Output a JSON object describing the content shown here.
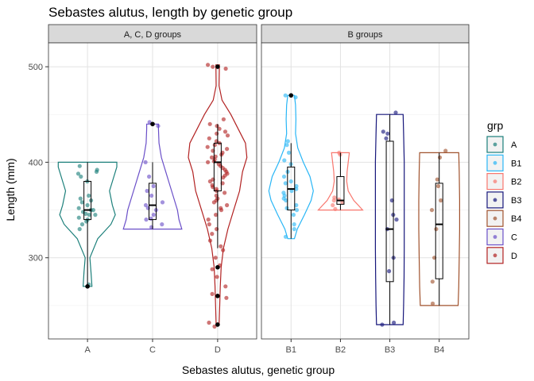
{
  "chart_data": {
    "type": "violin",
    "title": "Sebastes alutus, length by genetic group",
    "xlabel": "Sebastes alutus, genetic group",
    "ylabel": "Length (mm)",
    "ylim": [
      215,
      525
    ],
    "yticks": [
      300,
      400,
      500
    ],
    "grid": true,
    "legend_title": "grp",
    "legend_position": "right",
    "panels": [
      {
        "label": "A, C, D groups",
        "groups": [
          "A",
          "C",
          "D"
        ]
      },
      {
        "label": "B groups",
        "groups": [
          "B1",
          "B2",
          "B3",
          "B4"
        ]
      }
    ],
    "legend": [
      {
        "name": "A",
        "color": "#1B7F7A"
      },
      {
        "name": "B1",
        "color": "#29B6F6"
      },
      {
        "name": "B2",
        "color": "#F8766D"
      },
      {
        "name": "B3",
        "color": "#15157A"
      },
      {
        "name": "B4",
        "color": "#A0522D"
      },
      {
        "name": "C",
        "color": "#6A4FC8"
      },
      {
        "name": "D",
        "color": "#B22222"
      }
    ],
    "series": [
      {
        "name": "A",
        "color": "#1B7F7A",
        "box": {
          "min": 270,
          "q1": 340,
          "median": 350,
          "q3": 380,
          "max": 400
        },
        "outliers": [
          270
        ],
        "violin": [
          [
            270,
            0.15
          ],
          [
            285,
            0.12
          ],
          [
            300,
            0.08
          ],
          [
            320,
            0.35
          ],
          [
            335,
            0.8
          ],
          [
            345,
            0.95
          ],
          [
            355,
            0.85
          ],
          [
            370,
            0.75
          ],
          [
            385,
            0.9
          ],
          [
            395,
            1.0
          ],
          [
            400,
            1.0
          ]
        ],
        "points": [
          270,
          272,
          330,
          335,
          338,
          340,
          342,
          345,
          345,
          346,
          348,
          350,
          350,
          352,
          355,
          358,
          360,
          362,
          365,
          380,
          385,
          388,
          390,
          392,
          396
        ]
      },
      {
        "name": "C",
        "color": "#6A4FC8",
        "box": {
          "min": 330,
          "q1": 340,
          "median": 355,
          "q3": 378,
          "max": 400
        },
        "outliers": [
          440
        ],
        "violin": [
          [
            330,
            1.0
          ],
          [
            340,
            0.9
          ],
          [
            350,
            0.85
          ],
          [
            360,
            0.75
          ],
          [
            375,
            0.6
          ],
          [
            390,
            0.45
          ],
          [
            405,
            0.3
          ],
          [
            420,
            0.22
          ],
          [
            435,
            0.2
          ],
          [
            440,
            0.2
          ]
        ],
        "points": [
          332,
          335,
          340,
          341,
          345,
          350,
          352,
          355,
          358,
          365,
          370,
          375,
          385,
          400,
          438,
          442
        ]
      },
      {
        "name": "D",
        "color": "#B22222",
        "box": {
          "min": 310,
          "q1": 370,
          "median": 400,
          "q3": 420,
          "max": 440
        },
        "outliers": [
          230,
          260,
          290,
          500
        ],
        "violin": [
          [
            230,
            0.05
          ],
          [
            250,
            0.07
          ],
          [
            270,
            0.09
          ],
          [
            290,
            0.12
          ],
          [
            310,
            0.2
          ],
          [
            330,
            0.35
          ],
          [
            350,
            0.55
          ],
          [
            370,
            0.75
          ],
          [
            390,
            0.85
          ],
          [
            405,
            1.0
          ],
          [
            420,
            0.95
          ],
          [
            435,
            0.7
          ],
          [
            450,
            0.45
          ],
          [
            465,
            0.15
          ],
          [
            480,
            0.05
          ],
          [
            502,
            0.06
          ]
        ],
        "points": [
          228,
          232,
          258,
          262,
          270,
          280,
          288,
          292,
          300,
          308,
          312,
          318,
          325,
          330,
          335,
          340,
          345,
          350,
          352,
          355,
          358,
          360,
          362,
          365,
          368,
          370,
          372,
          374,
          376,
          378,
          380,
          382,
          384,
          386,
          388,
          390,
          392,
          394,
          396,
          398,
          400,
          401,
          403,
          405,
          406,
          408,
          410,
          412,
          414,
          416,
          418,
          420,
          422,
          425,
          428,
          430,
          432,
          435,
          438,
          440,
          445,
          498,
          500,
          502
        ]
      },
      {
        "name": "B1",
        "color": "#29B6F6",
        "box": {
          "min": 320,
          "q1": 350,
          "median": 372,
          "q3": 395,
          "max": 420
        },
        "outliers": [
          470
        ],
        "violin": [
          [
            320,
            0.15
          ],
          [
            330,
            0.28
          ],
          [
            345,
            0.6
          ],
          [
            360,
            0.9
          ],
          [
            370,
            1.0
          ],
          [
            385,
            0.85
          ],
          [
            400,
            0.55
          ],
          [
            415,
            0.3
          ],
          [
            430,
            0.2
          ],
          [
            445,
            0.22
          ],
          [
            460,
            0.2
          ],
          [
            470,
            0.15
          ]
        ],
        "points": [
          322,
          330,
          335,
          345,
          350,
          352,
          355,
          360,
          362,
          365,
          368,
          370,
          372,
          375,
          378,
          380,
          385,
          390,
          398,
          402,
          410,
          418,
          422,
          468,
          470
        ]
      },
      {
        "name": "B2",
        "color": "#F8766D",
        "box": {
          "min": 350,
          "q1": 356,
          "median": 360,
          "q3": 385,
          "max": 410
        },
        "outliers": [],
        "violin": [
          [
            350,
            1.0
          ],
          [
            355,
            0.8
          ],
          [
            360,
            0.6
          ],
          [
            370,
            0.35
          ],
          [
            380,
            0.28
          ],
          [
            390,
            0.3
          ],
          [
            400,
            0.35
          ],
          [
            410,
            0.4
          ]
        ],
        "points": [
          351,
          355,
          358,
          360,
          361,
          363,
          408,
          410
        ]
      },
      {
        "name": "B3",
        "color": "#15157A",
        "box": {
          "min": 230,
          "q1": 275,
          "median": 330,
          "q3": 422,
          "max": 450
        },
        "outliers": [],
        "violin": [
          [
            230,
            0.6
          ],
          [
            250,
            0.62
          ],
          [
            280,
            0.64
          ],
          [
            310,
            0.65
          ],
          [
            340,
            0.65
          ],
          [
            370,
            0.65
          ],
          [
            400,
            0.65
          ],
          [
            430,
            0.62
          ],
          [
            450,
            0.6
          ]
        ],
        "points": [
          230,
          232,
          286,
          300,
          330,
          340,
          345,
          360,
          425,
          430,
          432,
          452
        ]
      },
      {
        "name": "B4",
        "color": "#A0522D",
        "box": {
          "min": 250,
          "q1": 278,
          "median": 335,
          "q3": 378,
          "max": 410
        },
        "outliers": [],
        "violin": [
          [
            250,
            0.85
          ],
          [
            270,
            0.88
          ],
          [
            300,
            0.9
          ],
          [
            330,
            0.92
          ],
          [
            360,
            0.92
          ],
          [
            390,
            0.9
          ],
          [
            410,
            0.88
          ]
        ],
        "points": [
          252,
          275,
          300,
          330,
          350,
          360,
          375,
          382,
          405,
          412
        ]
      }
    ]
  }
}
